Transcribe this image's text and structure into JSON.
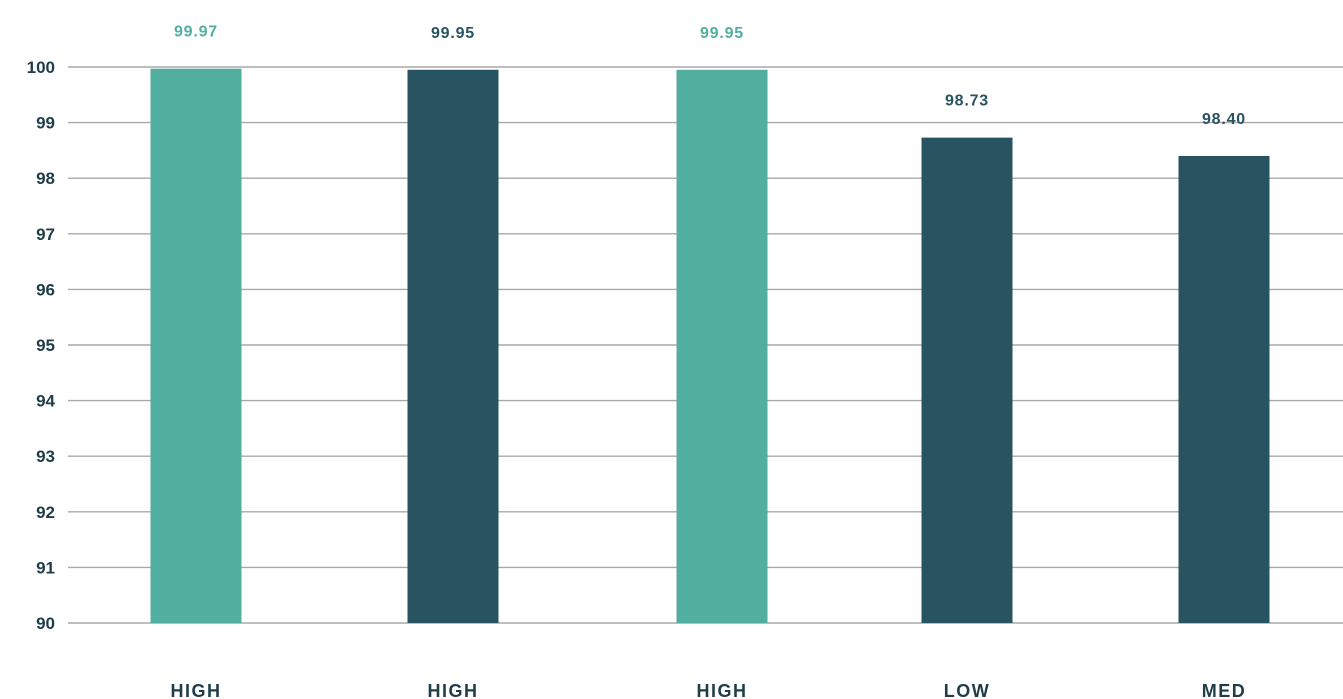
{
  "chart_data": {
    "type": "bar",
    "categories": [
      "HIGH",
      "HIGH",
      "HIGH",
      "LOW",
      "MED"
    ],
    "values": [
      99.97,
      99.95,
      99.95,
      98.73,
      98.4
    ],
    "value_labels": [
      "99.97",
      "99.95",
      "99.95",
      "98.73",
      "98.40"
    ],
    "bar_colors": [
      "#52ae9f",
      "#285361",
      "#52ae9f",
      "#285361",
      "#285361"
    ],
    "title": "",
    "xlabel": "",
    "ylabel": "",
    "ylim": [
      90,
      100
    ],
    "yticks": [
      "90",
      "91",
      "92",
      "93",
      "94",
      "95",
      "96",
      "97",
      "98",
      "99",
      "100"
    ],
    "grid": "horizontal",
    "legend": "none"
  },
  "colors": {
    "teal": "#52ae9f",
    "dark_teal": "#285361",
    "text": "#1f3d49",
    "gridline": "#a9a9a9"
  }
}
